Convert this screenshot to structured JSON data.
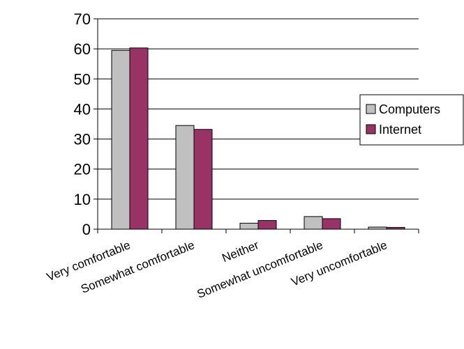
{
  "chart_data": {
    "type": "bar",
    "categories": [
      "Very comfortable",
      "Somewhat comfortable",
      "Neither",
      "Somewhat uncomfortable",
      "Very uncomfortable"
    ],
    "series": [
      {
        "name": "Computers",
        "color": "#c0c0c0",
        "values": [
          59.5,
          34.5,
          2,
          4.2,
          0.7
        ]
      },
      {
        "name": "Internet",
        "color": "#993366",
        "values": [
          60.3,
          33.2,
          2.9,
          3.5,
          0.6
        ]
      }
    ],
    "yticks": [
      0,
      10,
      20,
      30,
      40,
      50,
      60,
      70
    ],
    "ylim": [
      0,
      70
    ],
    "grid": true,
    "legend_position": "right"
  }
}
